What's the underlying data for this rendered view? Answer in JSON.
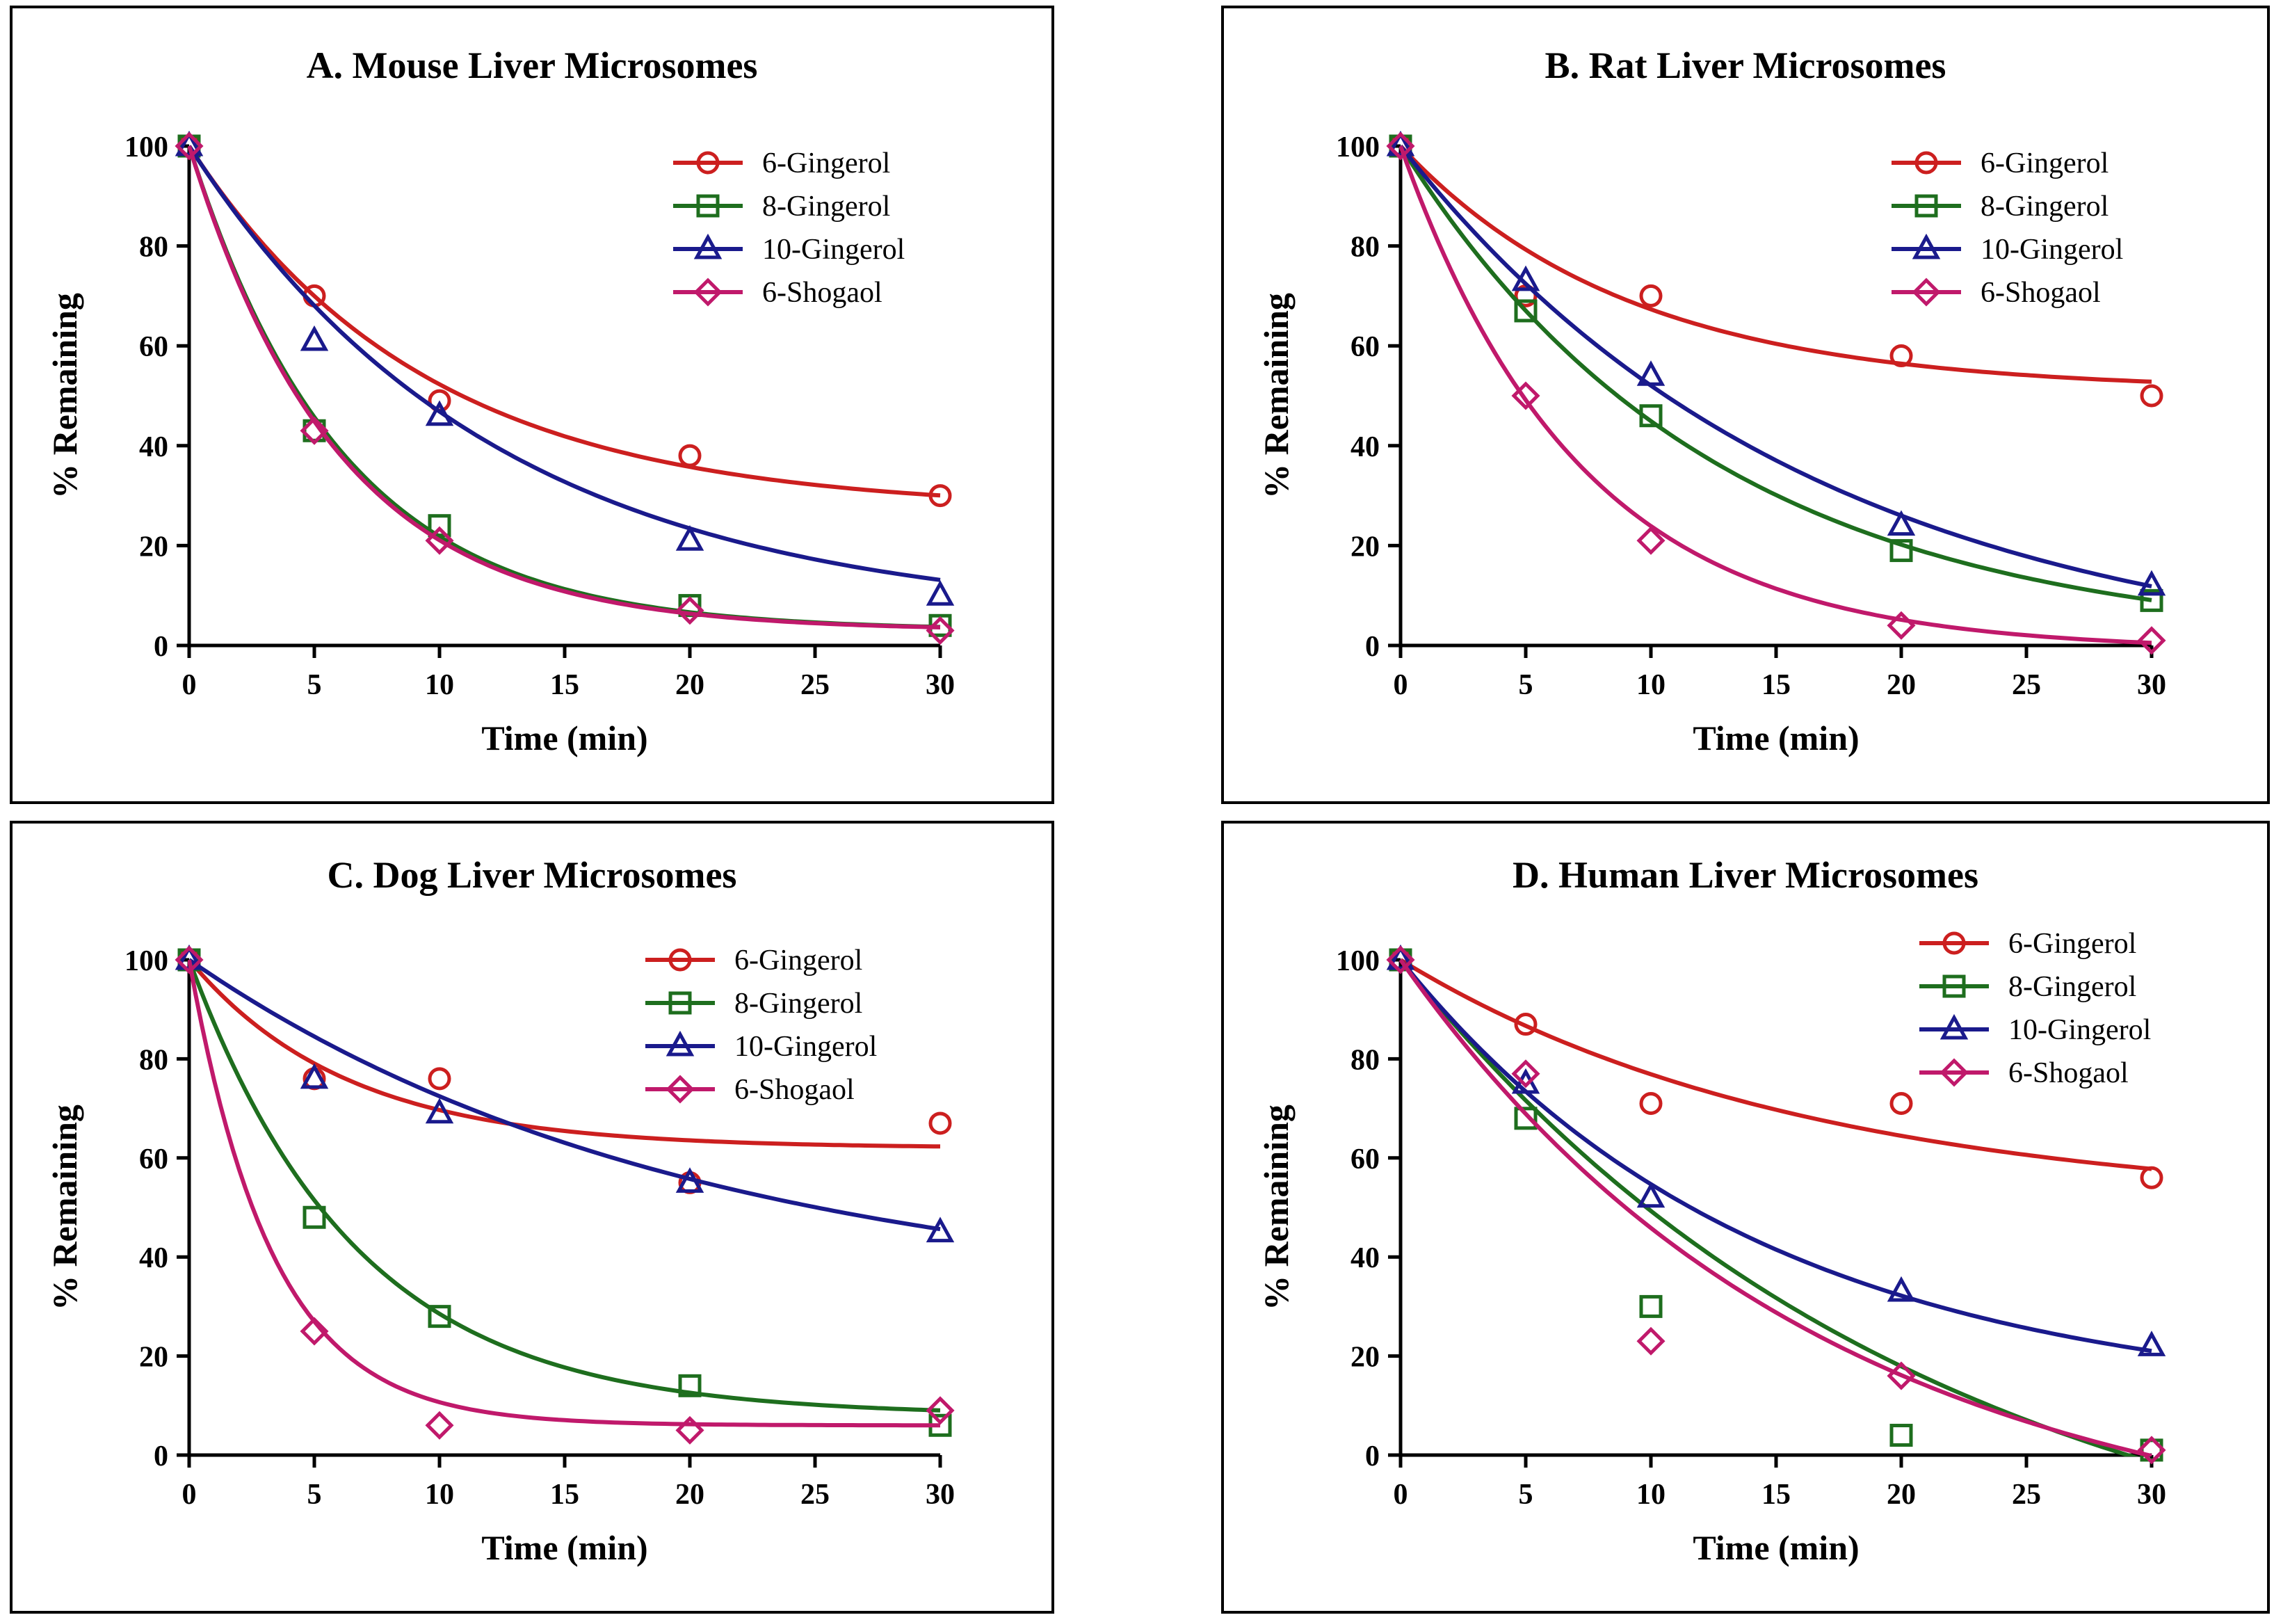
{
  "chart_data": [
    {
      "type": "scatter",
      "title": "A. Mouse Liver Microsomes",
      "xlabel": "Time (min)",
      "ylabel": "% Remaining",
      "xlim": [
        0,
        30
      ],
      "ylim": [
        0,
        100
      ],
      "xticks": [
        "0",
        "5",
        "10",
        "15",
        "20",
        "25",
        "30"
      ],
      "yticks": [
        "0",
        "20",
        "40",
        "60",
        "80",
        "100"
      ],
      "legend_position": "top-right",
      "x": [
        0,
        5,
        10,
        20,
        30
      ],
      "series": [
        {
          "name": "6-Gingerol",
          "marker": "circle",
          "color": "#cc1f1f",
          "values": [
            100,
            70,
            49,
            38,
            30
          ],
          "fit": {
            "plateau": 27,
            "k": 0.106
          }
        },
        {
          "name": "8-Gingerol",
          "marker": "square",
          "color": "#1e6e1e",
          "values": [
            100,
            43,
            24,
            8,
            4
          ],
          "fit": {
            "plateau": 3,
            "k": 0.164
          }
        },
        {
          "name": "10-Gingerol",
          "marker": "triangle",
          "color": "#1a1a8c",
          "values": [
            100,
            61,
            46,
            21,
            10
          ],
          "fit": {
            "plateau": 5,
            "k": 0.082
          }
        },
        {
          "name": "6-Shogaol",
          "marker": "diamond",
          "color": "#c0196b",
          "values": [
            100,
            43,
            21,
            7,
            3
          ],
          "fit": {
            "plateau": 3,
            "k": 0.168
          }
        }
      ]
    },
    {
      "type": "scatter",
      "title": "B. Rat Liver Microsomes",
      "xlabel": "Time (min)",
      "ylabel": "% Remaining",
      "xlim": [
        0,
        30
      ],
      "ylim": [
        0,
        100
      ],
      "xticks": [
        "0",
        "5",
        "10",
        "15",
        "20",
        "25",
        "30"
      ],
      "yticks": [
        "0",
        "20",
        "40",
        "60",
        "80",
        "100"
      ],
      "legend_position": "top-right",
      "x": [
        0,
        5,
        10,
        20,
        30
      ],
      "series": [
        {
          "name": "6-Gingerol",
          "marker": "circle",
          "color": "#cc1f1f",
          "values": [
            100,
            70,
            70,
            58,
            50
          ],
          "fit": {
            "plateau": 51,
            "k": 0.11
          }
        },
        {
          "name": "8-Gingerol",
          "marker": "square",
          "color": "#1e6e1e",
          "values": [
            100,
            67,
            46,
            19,
            9
          ],
          "fit": {
            "plateau": 0,
            "k": 0.08
          }
        },
        {
          "name": "10-Gingerol",
          "marker": "triangle",
          "color": "#1a1a8c",
          "values": [
            100,
            73,
            54,
            24,
            12
          ],
          "fit": {
            "plateau": -5,
            "k": 0.061
          }
        },
        {
          "name": "6-Shogaol",
          "marker": "diamond",
          "color": "#c0196b",
          "values": [
            100,
            50,
            21,
            4,
            1
          ],
          "fit": {
            "plateau": -1,
            "k": 0.14
          }
        }
      ]
    },
    {
      "type": "scatter",
      "title": "C. Dog Liver Microsomes",
      "xlabel": "Time (min)",
      "ylabel": "% Remaining",
      "xlim": [
        0,
        30
      ],
      "ylim": [
        0,
        100
      ],
      "xticks": [
        "0",
        "5",
        "10",
        "15",
        "20",
        "25",
        "30"
      ],
      "yticks": [
        "0",
        "20",
        "40",
        "60",
        "80",
        "100"
      ],
      "legend_position": "top-right",
      "x": [
        0,
        5,
        10,
        20,
        30
      ],
      "series": [
        {
          "name": "6-Gingerol",
          "marker": "circle",
          "color": "#cc1f1f",
          "values": [
            100,
            76,
            76,
            55,
            67
          ],
          "fit": {
            "plateau": 62,
            "k": 0.16
          }
        },
        {
          "name": "8-Gingerol",
          "marker": "square",
          "color": "#1e6e1e",
          "values": [
            100,
            48,
            28,
            14,
            6
          ],
          "fit": {
            "plateau": 8,
            "k": 0.15
          }
        },
        {
          "name": "10-Gingerol",
          "marker": "triangle",
          "color": "#1a1a8c",
          "values": [
            100,
            76,
            69,
            55,
            45
          ],
          "fit": {
            "plateau": 30,
            "k": 0.05
          }
        },
        {
          "name": "6-Shogaol",
          "marker": "diamond",
          "color": "#c0196b",
          "values": [
            100,
            25,
            6,
            5,
            9
          ],
          "fit": {
            "plateau": 6,
            "k": 0.3
          }
        }
      ]
    },
    {
      "type": "scatter",
      "title": "D. Human Liver Microsomes",
      "xlabel": "Time (min)",
      "ylabel": "% Remaining",
      "xlim": [
        0,
        30
      ],
      "ylim": [
        0,
        100
      ],
      "xticks": [
        "0",
        "5",
        "10",
        "15",
        "20",
        "25",
        "30"
      ],
      "yticks": [
        "0",
        "20",
        "40",
        "60",
        "80",
        "100"
      ],
      "legend_position": "top-right",
      "x": [
        0,
        5,
        10,
        20,
        30
      ],
      "series": [
        {
          "name": "6-Gingerol",
          "marker": "circle",
          "color": "#cc1f1f",
          "values": [
            100,
            87,
            71,
            71,
            56
          ],
          "fit": {
            "plateau": 50,
            "k": 0.062
          }
        },
        {
          "name": "8-Gingerol",
          "marker": "square",
          "color": "#1e6e1e",
          "values": [
            100,
            68,
            30,
            4,
            1
          ],
          "fit": {
            "plateau": -33,
            "k": 0.048
          }
        },
        {
          "name": "10-Gingerol",
          "marker": "triangle",
          "color": "#1a1a8c",
          "values": [
            100,
            75,
            52,
            33,
            22
          ],
          "fit": {
            "plateau": 10,
            "k": 0.07
          }
        },
        {
          "name": "6-Shogaol",
          "marker": "diamond",
          "color": "#c0196b",
          "values": [
            100,
            77,
            23,
            16,
            1
          ],
          "fit": {
            "plateau": -20,
            "k": 0.06
          }
        }
      ]
    }
  ]
}
